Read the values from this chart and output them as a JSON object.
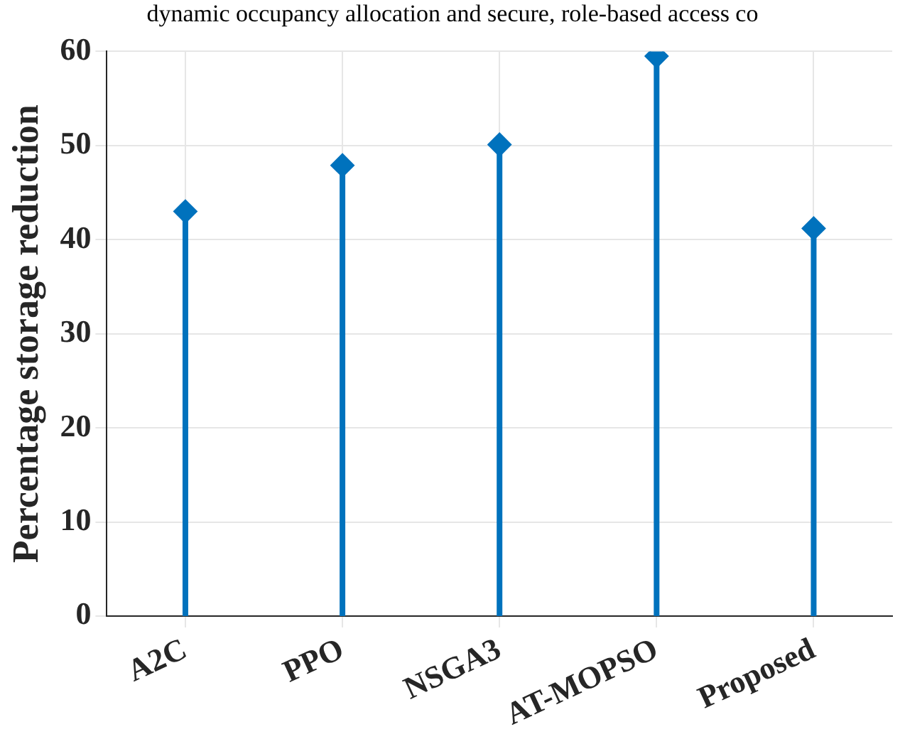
{
  "chart_data": {
    "type": "lollipop",
    "title": "dynamic occupancy allocation and secure, role-based access co",
    "ylabel": "Percentage storage reduction",
    "categories": [
      "A2C",
      "PPO",
      "NSGA3",
      "AT-MOPSO",
      "Proposed"
    ],
    "values": [
      43,
      47.9,
      50.1,
      59.5,
      41.2
    ],
    "color": "#0072bd",
    "ylim": [
      0,
      60
    ],
    "yticks": [
      0,
      10,
      20,
      30,
      40,
      50,
      60
    ],
    "grid": true,
    "marker": "diamond"
  }
}
